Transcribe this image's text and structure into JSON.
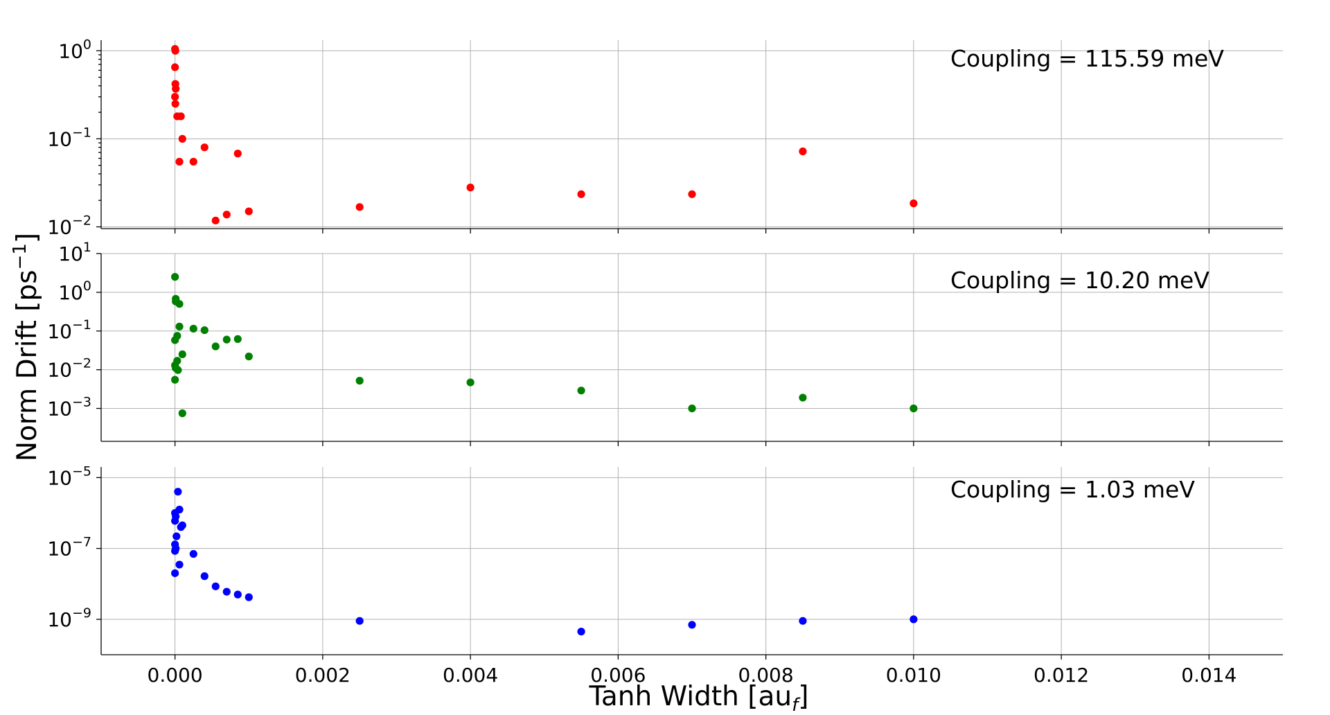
{
  "chart_data": {
    "type": "scatter",
    "xlabel": "Tanh Width [au",
    "xlabel_sub": "f",
    "xlabel_suffix": "]",
    "ylabel": "Norm Drift [ps",
    "ylabel_sup": "−1",
    "ylabel_suffix": "]",
    "xlim": [
      -0.001,
      0.015
    ],
    "x_ticks": [
      0.0,
      0.002,
      0.004,
      0.006,
      0.008,
      0.01,
      0.012,
      0.014
    ],
    "x_tick_labels": [
      "0.000",
      "0.002",
      "0.004",
      "0.006",
      "0.008",
      "0.010",
      "0.012",
      "0.014"
    ],
    "grid": true,
    "panels": [
      {
        "annotation": "Coupling = 115.59 meV",
        "color": "#ff0000",
        "yscale": "log",
        "ylim_exp": [
          -2.02,
          0.12
        ],
        "y_ticks": [
          {
            "base": "10",
            "exp": "0",
            "val": 0
          },
          {
            "base": "10",
            "exp": "−1",
            "val": -1
          },
          {
            "base": "10",
            "exp": "−2",
            "val": -2
          }
        ],
        "points": [
          [
            0.0,
            1.05
          ],
          [
            5e-06,
            1.0
          ],
          [
            0.0,
            0.65
          ],
          [
            5e-06,
            0.42
          ],
          [
            1e-05,
            0.37
          ],
          [
            0.0,
            0.3
          ],
          [
            5e-06,
            0.25
          ],
          [
            3e-05,
            0.18
          ],
          [
            8e-05,
            0.18
          ],
          [
            0.0001,
            0.1
          ],
          [
            6e-05,
            0.055
          ],
          [
            0.00025,
            0.055
          ],
          [
            0.0004,
            0.08
          ],
          [
            0.00085,
            0.068
          ],
          [
            0.00055,
            0.0118
          ],
          [
            0.0007,
            0.0138
          ],
          [
            0.001,
            0.015
          ],
          [
            0.0025,
            0.0168
          ],
          [
            0.004,
            0.028
          ],
          [
            0.0055,
            0.0235
          ],
          [
            0.007,
            0.0235
          ],
          [
            0.0085,
            0.072
          ],
          [
            0.01,
            0.0185
          ]
        ]
      },
      {
        "annotation": "Coupling = 10.20 meV",
        "color": "#008000",
        "yscale": "log",
        "ylim_exp": [
          -3.85,
          1.0
        ],
        "y_ticks": [
          {
            "base": "10",
            "exp": "1",
            "val": 1
          },
          {
            "base": "10",
            "exp": "0",
            "val": 0
          },
          {
            "base": "10",
            "exp": "−1",
            "val": -1
          },
          {
            "base": "10",
            "exp": "−2",
            "val": -2
          },
          {
            "base": "10",
            "exp": "−3",
            "val": -3
          }
        ],
        "points": [
          [
            0.0,
            2.5
          ],
          [
            1e-05,
            0.68
          ],
          [
            1e-05,
            0.58
          ],
          [
            6e-05,
            0.5
          ],
          [
            6e-05,
            0.13
          ],
          [
            3e-05,
            0.075
          ],
          [
            0.0,
            0.058
          ],
          [
            3e-05,
            0.017
          ],
          [
            0.0,
            0.013
          ],
          [
            1e-05,
            0.011
          ],
          [
            4e-05,
            0.0098
          ],
          [
            0.0001,
            0.025
          ],
          [
            0.0,
            0.0055
          ],
          [
            0.0001,
            0.00075
          ],
          [
            0.00025,
            0.115
          ],
          [
            0.0004,
            0.105
          ],
          [
            0.00055,
            0.04
          ],
          [
            0.0007,
            0.06
          ],
          [
            0.00085,
            0.062
          ],
          [
            0.001,
            0.022
          ],
          [
            0.0025,
            0.0052
          ],
          [
            0.004,
            0.0047
          ],
          [
            0.0055,
            0.0029
          ],
          [
            0.007,
            0.001
          ],
          [
            0.0085,
            0.0019
          ],
          [
            0.01,
            0.001
          ]
        ]
      },
      {
        "annotation": "Coupling = 1.03 meV",
        "color": "#0000ff",
        "yscale": "log",
        "ylim_exp": [
          -10.0,
          -4.7
        ],
        "y_ticks": [
          {
            "base": "10",
            "exp": "−5",
            "val": -5
          },
          {
            "base": "10",
            "exp": "−7",
            "val": -7
          },
          {
            "base": "10",
            "exp": "−9",
            "val": -9
          }
        ],
        "points": [
          [
            4e-05,
            4e-06
          ],
          [
            0.0,
            1e-06
          ],
          [
            6e-05,
            1.25e-06
          ],
          [
            1e-05,
            8e-07
          ],
          [
            0.0,
            6e-07
          ],
          [
            0.0001,
            4.5e-07
          ],
          [
            8e-05,
            4e-07
          ],
          [
            2e-05,
            2.2e-07
          ],
          [
            0.0,
            1.3e-07
          ],
          [
            1e-05,
            1e-07
          ],
          [
            0.0,
            8.5e-08
          ],
          [
            6e-05,
            3.5e-08
          ],
          [
            0.0,
            2e-08
          ],
          [
            0.00025,
            7e-08
          ],
          [
            0.0004,
            1.65e-08
          ],
          [
            0.00055,
            8.5e-09
          ],
          [
            0.0007,
            6e-09
          ],
          [
            0.00085,
            5e-09
          ],
          [
            0.001,
            4.2e-09
          ],
          [
            0.0025,
            9e-10
          ],
          [
            0.0055,
            4.5e-10
          ],
          [
            0.007,
            7e-10
          ],
          [
            0.0085,
            9e-10
          ],
          [
            0.01,
            1e-09
          ]
        ]
      }
    ]
  }
}
